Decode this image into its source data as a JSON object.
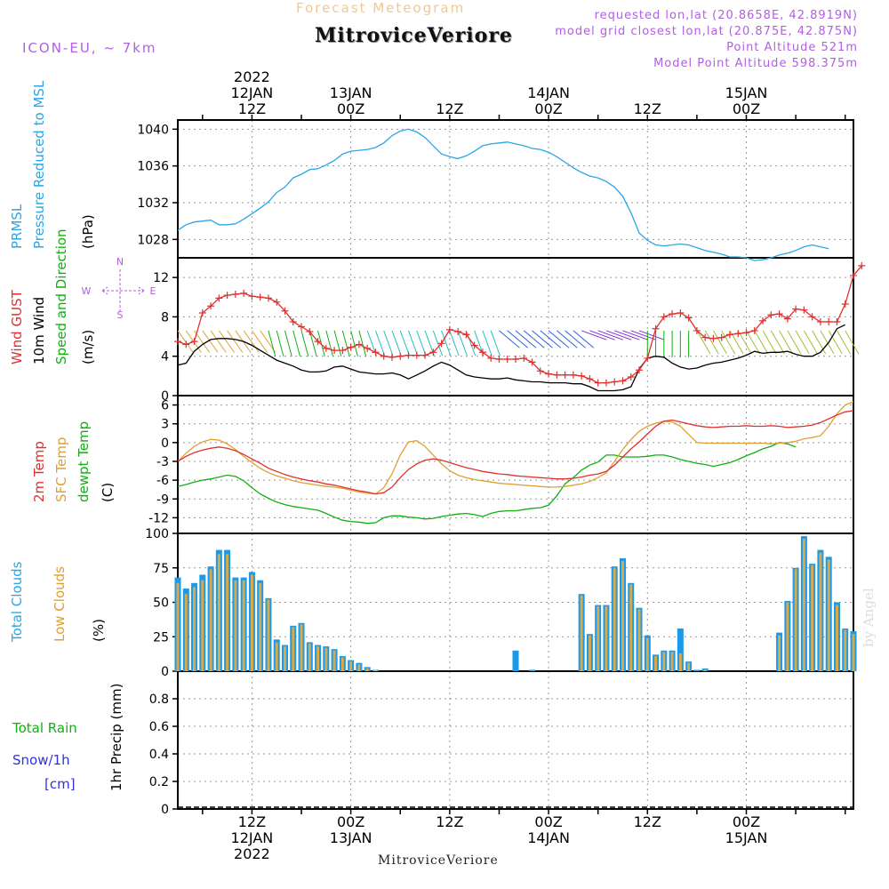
{
  "header": {
    "title": "MitroviceVeriore",
    "subtitle": "Forecast Meteogram",
    "model": "ICON-EU, ~ 7km",
    "requested": "requested lon,lat (20.8658E, 42.8919N)",
    "closest": "model grid closest lon,lat (20.875E, 42.875N)",
    "point_alt": "Point Altitude 521m",
    "model_alt": "Model Point Altitude 598.375m",
    "watermark": "by Angel",
    "footer": "MitroviceVeriore"
  },
  "time_axis": {
    "top": [
      {
        "t": 12,
        "l1": "2022",
        "l2": "12JAN",
        "l3": "12Z"
      },
      {
        "t": 24,
        "l1": "",
        "l2": "13JAN",
        "l3": "00Z"
      },
      {
        "t": 36,
        "l1": "",
        "l2": "",
        "l3": "12Z"
      },
      {
        "t": 48,
        "l1": "",
        "l2": "14JAN",
        "l3": "00Z"
      },
      {
        "t": 60,
        "l1": "",
        "l2": "",
        "l3": "12Z"
      },
      {
        "t": 72,
        "l1": "",
        "l2": "15JAN",
        "l3": "00Z"
      }
    ],
    "bottom": [
      {
        "t": 12,
        "l1": "12Z",
        "l2": "12JAN",
        "l3": "2022"
      },
      {
        "t": 24,
        "l1": "00Z",
        "l2": "13JAN",
        "l3": ""
      },
      {
        "t": 36,
        "l1": "12Z",
        "l2": "",
        "l3": ""
      },
      {
        "t": 48,
        "l1": "00Z",
        "l2": "14JAN",
        "l3": ""
      },
      {
        "t": 60,
        "l1": "12Z",
        "l2": "",
        "l3": ""
      },
      {
        "t": 72,
        "l1": "00Z",
        "l2": "15JAN",
        "l3": ""
      }
    ]
  },
  "panel_labels": {
    "p1": [
      {
        "text": "PRMSL",
        "color": "#2aa6e6"
      },
      {
        "text": "Pressure Reduced to MSL",
        "color": "#2aa6e6"
      },
      {
        "text": "(hPa)",
        "color": "#000000"
      }
    ],
    "p2": [
      {
        "text": "Wind GUST",
        "color": "#e03030"
      },
      {
        "text": "10m Wind",
        "color": "#000000"
      },
      {
        "text": "Speed and Direction",
        "color": "#10b010"
      },
      {
        "text": "(m/s)",
        "color": "#000000"
      }
    ],
    "p3": [
      {
        "text": "2m Temp",
        "color": "#e03030"
      },
      {
        "text": "SFC Temp",
        "color": "#e0a030"
      },
      {
        "text": "dewpt Temp",
        "color": "#10b010"
      },
      {
        "text": "(C)",
        "color": "#000000"
      }
    ],
    "p4": [
      {
        "text": "Total Clouds",
        "color": "#2aa6e6"
      },
      {
        "text": "Low Clouds",
        "color": "#e0a030"
      },
      {
        "text": "(%)",
        "color": "#000000"
      }
    ],
    "p5": [
      {
        "text": "1hr Precip (mm)",
        "color": "#000000"
      }
    ],
    "p5_side": [
      {
        "text": "Total  Rain",
        "color": "#10b010"
      },
      {
        "text": "Snow/1h",
        "color": "#3030e0"
      },
      {
        "text": "[cm]",
        "color": "#3030e0"
      }
    ],
    "compass": {
      "n": "N",
      "s": "S",
      "w": "W",
      "e": "E"
    }
  },
  "colors": {
    "pressure": "#2aa6e6",
    "gust": "#e03030",
    "wind": "#000000",
    "t2m": "#e03030",
    "tsfc": "#e0a030",
    "dewpt": "#10b010",
    "total_clouds": "#1a9ae8",
    "low_clouds": "#d9a84a",
    "compass": "#b060e0"
  },
  "chart_data": [
    {
      "type": "line",
      "series": [
        {
          "name": "PRMSL",
          "values": [
            1029.0,
            1029.6,
            1029.9,
            1030.0,
            1030.1,
            1029.6,
            1029.6,
            1029.7,
            1030.2,
            1030.8,
            1031.4,
            1032.1,
            1033.1,
            1033.7,
            1034.7,
            1035.1,
            1035.6,
            1035.7,
            1036.1,
            1036.6,
            1037.3,
            1037.6,
            1037.7,
            1037.8,
            1038.0,
            1038.5,
            1039.3,
            1039.8,
            1040.0,
            1039.7,
            1039.1,
            1038.2,
            1037.3,
            1037.0,
            1036.8,
            1037.1,
            1037.6,
            1038.2,
            1038.4,
            1038.5,
            1038.6,
            1038.4,
            1038.2,
            1037.9,
            1037.8,
            1037.5,
            1037.0,
            1036.4,
            1035.8,
            1035.3,
            1034.9,
            1034.7,
            1034.3,
            1033.7,
            1032.7,
            1030.9,
            1028.7,
            1027.9,
            1027.4,
            1027.3,
            1027.4,
            1027.5,
            1027.4,
            1027.1,
            1026.8,
            1026.6,
            1026.4,
            1026.1,
            1026.1,
            1026.0,
            1025.7,
            1025.8,
            1026.0,
            1026.3,
            1026.5,
            1026.8,
            1027.2,
            1027.4,
            1027.2,
            1027.0
          ]
        }
      ],
      "ylim": [
        1026,
        1041
      ],
      "yticks": [
        1028,
        1032,
        1036,
        1040
      ]
    },
    {
      "type": "line",
      "series": [
        {
          "name": "Wind GUST",
          "values": [
            5.5,
            5.2,
            5.5,
            8.4,
            9.1,
            9.9,
            10.2,
            10.3,
            10.4,
            10.1,
            10.0,
            9.9,
            9.5,
            8.6,
            7.5,
            7.0,
            6.5,
            5.5,
            4.8,
            4.6,
            4.6,
            4.9,
            5.2,
            4.8,
            4.4,
            4.0,
            3.9,
            4.0,
            4.1,
            4.1,
            4.1,
            4.4,
            5.3,
            6.7,
            6.5,
            6.2,
            5.1,
            4.4,
            3.8,
            3.7,
            3.7,
            3.7,
            3.8,
            3.4,
            2.5,
            2.2,
            2.1,
            2.1,
            2.1,
            2.0,
            1.7,
            1.3,
            1.3,
            1.4,
            1.5,
            1.9,
            2.6,
            3.8,
            6.8,
            8.0,
            8.3,
            8.4,
            7.9,
            6.6,
            5.9,
            5.8,
            5.9,
            6.2,
            6.3,
            6.4,
            6.6,
            7.6,
            8.2,
            8.3,
            7.8,
            8.8,
            8.7,
            8.0,
            7.5,
            7.5,
            7.5,
            9.3,
            12.2,
            13.2
          ]
        },
        {
          "name": "10m Wind",
          "values": [
            3.1,
            3.3,
            4.5,
            5.2,
            5.7,
            5.8,
            5.8,
            5.7,
            5.5,
            5.1,
            4.6,
            4.1,
            3.6,
            3.3,
            3.0,
            2.6,
            2.4,
            2.4,
            2.5,
            2.9,
            3.0,
            2.7,
            2.4,
            2.3,
            2.2,
            2.2,
            2.3,
            2.1,
            1.7,
            2.1,
            2.5,
            3.0,
            3.4,
            3.1,
            2.6,
            2.1,
            1.9,
            1.8,
            1.7,
            1.7,
            1.8,
            1.6,
            1.5,
            1.4,
            1.4,
            1.3,
            1.3,
            1.3,
            1.2,
            1.2,
            0.9,
            0.5,
            0.5,
            0.5,
            0.6,
            0.9,
            2.7,
            3.8,
            4.0,
            3.9,
            3.3,
            2.9,
            2.7,
            2.8,
            3.1,
            3.3,
            3.4,
            3.6,
            3.8,
            4.1,
            4.5,
            4.3,
            4.4,
            4.4,
            4.5,
            4.2,
            4.0,
            4.0,
            4.4,
            5.4,
            6.8,
            7.2
          ]
        }
      ],
      "ylim": [
        0,
        14
      ],
      "yticks": [
        0,
        4,
        8,
        12
      ]
    },
    {
      "type": "line",
      "series": [
        {
          "name": "2m Temp",
          "values": [
            -3.0,
            -2.2,
            -1.6,
            -1.2,
            -0.9,
            -0.7,
            -0.9,
            -1.3,
            -1.9,
            -2.6,
            -3.3,
            -4.1,
            -4.6,
            -5.1,
            -5.5,
            -5.8,
            -6.1,
            -6.3,
            -6.6,
            -6.8,
            -7.1,
            -7.4,
            -7.7,
            -7.9,
            -8.2,
            -8.0,
            -7.1,
            -5.6,
            -4.3,
            -3.4,
            -2.8,
            -2.6,
            -2.8,
            -3.2,
            -3.6,
            -4.0,
            -4.3,
            -4.6,
            -4.8,
            -5.0,
            -5.1,
            -5.3,
            -5.4,
            -5.5,
            -5.6,
            -5.7,
            -5.8,
            -5.8,
            -5.7,
            -5.5,
            -5.2,
            -5.0,
            -4.6,
            -3.6,
            -2.3,
            -1.0,
            0.1,
            1.4,
            2.6,
            3.4,
            3.6,
            3.3,
            3.0,
            2.7,
            2.5,
            2.4,
            2.5,
            2.6,
            2.6,
            2.7,
            2.6,
            2.6,
            2.7,
            2.6,
            2.4,
            2.5,
            2.6,
            2.8,
            3.2,
            3.8,
            4.4,
            4.9,
            5.1
          ]
        },
        {
          "name": "SFC Temp",
          "values": [
            -3.0,
            -1.7,
            -0.6,
            0.1,
            0.5,
            0.4,
            -0.2,
            -1.1,
            -2.2,
            -3.2,
            -4.1,
            -4.8,
            -5.3,
            -5.7,
            -6.1,
            -6.4,
            -6.6,
            -6.8,
            -7.0,
            -7.1,
            -7.3,
            -7.6,
            -7.9,
            -8.1,
            -8.2,
            -7.2,
            -5.0,
            -2.0,
            0.1,
            0.3,
            -0.6,
            -2.0,
            -3.4,
            -4.5,
            -5.2,
            -5.6,
            -5.9,
            -6.1,
            -6.3,
            -6.5,
            -6.6,
            -6.7,
            -6.8,
            -6.9,
            -7.0,
            -7.1,
            -7.1,
            -7.0,
            -6.8,
            -6.6,
            -6.2,
            -5.6,
            -4.8,
            -3.0,
            -1.1,
            0.5,
            1.8,
            2.6,
            3.1,
            3.4,
            3.3,
            2.6,
            1.3,
            0.0,
            -0.1,
            -0.1,
            -0.1,
            -0.1,
            -0.1,
            -0.1,
            -0.1,
            -0.1,
            -0.2,
            -0.1,
            0.0,
            0.2,
            0.6,
            0.8,
            1.1,
            2.6,
            4.6,
            6.0,
            6.5
          ]
        },
        {
          "name": "dewpt Temp",
          "values": [
            -7.0,
            -6.7,
            -6.3,
            -6.0,
            -5.8,
            -5.5,
            -5.2,
            -5.4,
            -6.1,
            -7.2,
            -8.2,
            -8.9,
            -9.5,
            -9.9,
            -10.2,
            -10.4,
            -10.6,
            -10.8,
            -11.3,
            -11.9,
            -12.4,
            -12.6,
            -12.7,
            -12.9,
            -12.8,
            -12.0,
            -11.7,
            -11.7,
            -11.9,
            -12.0,
            -12.2,
            -12.1,
            -11.8,
            -11.6,
            -11.4,
            -11.3,
            -11.5,
            -11.8,
            -11.3,
            -11.0,
            -10.9,
            -10.9,
            -10.7,
            -10.5,
            -10.4,
            -10.0,
            -8.5,
            -6.6,
            -5.6,
            -4.4,
            -3.6,
            -3.1,
            -2.0,
            -2.0,
            -2.3,
            -2.3,
            -2.3,
            -2.2,
            -2.0,
            -2.0,
            -2.3,
            -2.7,
            -3.0,
            -3.3,
            -3.5,
            -3.8,
            -3.5,
            -3.2,
            -2.7,
            -2.1,
            -1.6,
            -1.0,
            -0.6,
            0.0,
            -0.2,
            -0.7
          ]
        }
      ],
      "ylim": [
        -14.5,
        7.5
      ],
      "yticks": [
        -12,
        -9,
        -6,
        -3,
        0,
        3,
        6
      ]
    },
    {
      "type": "bar",
      "series": [
        {
          "name": "Total Clouds",
          "values": [
            68,
            60,
            64,
            70,
            76,
            88,
            88,
            68,
            68,
            72,
            66,
            53,
            23,
            19,
            33,
            35,
            21,
            19,
            18,
            16,
            11,
            8,
            6,
            3,
            1,
            0,
            0,
            0,
            0,
            0,
            0,
            0,
            0,
            0,
            0,
            0,
            0,
            0,
            0,
            0,
            0,
            15,
            0,
            1,
            0,
            0,
            0,
            0,
            0,
            56,
            27,
            48,
            48,
            76,
            82,
            64,
            46,
            26,
            12,
            15,
            15,
            31,
            7,
            1,
            2,
            0,
            0,
            0,
            0,
            0,
            0,
            0,
            0,
            28,
            51,
            75,
            98,
            78,
            88,
            83,
            50,
            31,
            29
          ]
        },
        {
          "name": "Low Clouds",
          "values": [
            64,
            56,
            61,
            66,
            74,
            85,
            85,
            66,
            66,
            70,
            64,
            52,
            21,
            18,
            32,
            34,
            20,
            18,
            17,
            15,
            10,
            7,
            5,
            2,
            1,
            0,
            0,
            0,
            0,
            0,
            0,
            0,
            0,
            0,
            0,
            0,
            0,
            0,
            0,
            0,
            0,
            0,
            0,
            0,
            0,
            0,
            0,
            0,
            0,
            55,
            26,
            47,
            47,
            75,
            80,
            63,
            45,
            24,
            11,
            14,
            14,
            13,
            6,
            0,
            1,
            0,
            0,
            0,
            0,
            0,
            0,
            0,
            0,
            26,
            50,
            74,
            96,
            77,
            86,
            81,
            48,
            30,
            27
          ]
        }
      ],
      "ylim": [
        0,
        100
      ],
      "yticks": [
        0,
        25,
        50,
        75,
        100
      ]
    },
    {
      "type": "bar",
      "series": [
        {
          "name": "1hr Precip",
          "values": []
        }
      ],
      "ylim": [
        0,
        1.0
      ],
      "yticks": [
        0,
        0.2,
        0.4,
        0.6,
        0.8
      ]
    }
  ]
}
